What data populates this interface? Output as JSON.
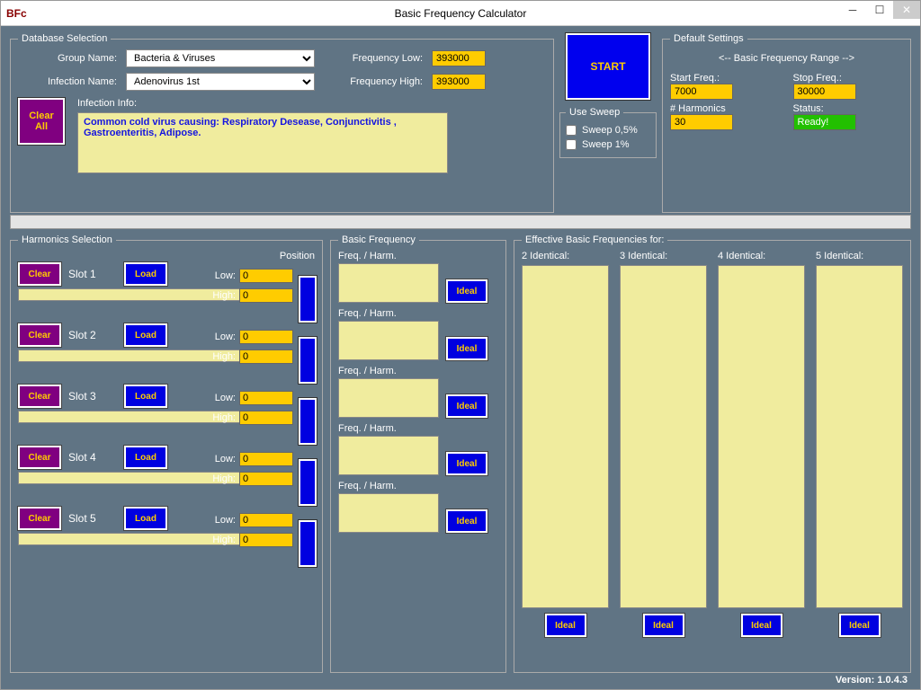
{
  "window": {
    "title": "Basic Frequency Calculator",
    "icon": "BFc"
  },
  "db": {
    "legend": "Database Selection",
    "group_label": "Group Name:",
    "group_value": "Bacteria & Viruses",
    "infection_label": "Infection Name:",
    "infection_value": "Adenovirus 1st",
    "freq_low_label": "Frequency Low:",
    "freq_low_value": "393000",
    "freq_high_label": "Frequency High:",
    "freq_high_value": "393000",
    "info_label": "Infection Info:",
    "info_text": "Common cold virus causing: Respiratory Desease, Conjunctivitis , Gastroenteritis, Adipose.",
    "clear_all": "Clear\nAll"
  },
  "start": {
    "label": "START"
  },
  "sweep": {
    "legend": "Use Sweep",
    "opt1": "Sweep 0,5%",
    "opt2": "Sweep 1%"
  },
  "defaults": {
    "legend": "Default Settings",
    "range_label": "<-- Basic Frequency Range -->",
    "start_label": "Start Freq.:",
    "start_value": "7000",
    "stop_label": "Stop Freq.:",
    "stop_value": "30000",
    "harm_label": "# Harmonics",
    "harm_value": "30",
    "status_label": "Status:",
    "status_value": "Ready!"
  },
  "harm": {
    "legend": "Harmonics Selection",
    "position": "Position",
    "clear": "Clear",
    "load": "Load",
    "low": "Low:",
    "high": "High:",
    "zero": "0",
    "slots": [
      "Slot 1",
      "Slot 2",
      "Slot 3",
      "Slot 4",
      "Slot 5"
    ]
  },
  "basic": {
    "legend": "Basic Frequency",
    "hdr": "Freq. / Harm.",
    "ideal": "Ideal"
  },
  "eff": {
    "legend": "Effective Basic Frequencies for:",
    "cols": [
      "2 Identical:",
      "3 Identical:",
      "4 Identical:",
      "5 Identical:"
    ],
    "ideal": "Ideal"
  },
  "version_label": "Version: 1.0.4.3"
}
